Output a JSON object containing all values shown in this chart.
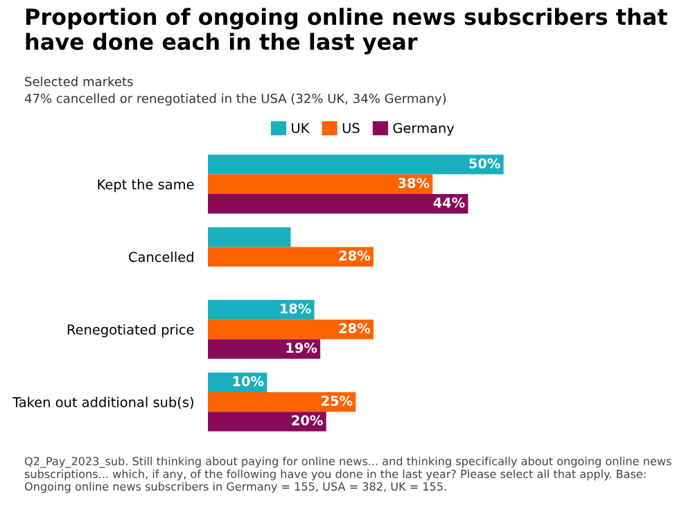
{
  "chart_data": {
    "type": "bar",
    "orientation": "horizontal",
    "title": "Proportion of ongoing online news subscribers that have done each in the last year",
    "subtitle": "Selected markets\n47% cancelled or renegotiated in the USA (32% UK, 34% Germany)",
    "categories": [
      "Kept the same",
      "Cancelled",
      "Renegotiated price",
      "Taken out additional sub(s)"
    ],
    "series": [
      {
        "name": "UK",
        "color": "#1aafbf",
        "values": [
          50,
          14,
          18,
          10
        ],
        "value_labels": [
          "50%",
          null,
          "18%",
          "10%"
        ]
      },
      {
        "name": "US",
        "color": "#ff6200",
        "values": [
          38,
          28,
          28,
          25
        ],
        "value_labels": [
          "38%",
          "28%",
          "28%",
          "25%"
        ]
      },
      {
        "name": "Germany",
        "color": "#8a0a5a",
        "values": [
          44,
          null,
          19,
          20
        ],
        "value_labels": [
          "44%",
          null,
          "19%",
          "20%"
        ]
      }
    ],
    "legend": "top",
    "grid": false,
    "annotations": [
      "Q2_Pay_2023_sub. Still thinking about paying for online news... and thinking specifically about ongoing online news subscriptions... which, if any, of the following have you done in the last year? Please select all that apply. Base: Ongoing online news subscribers in Germany = 155, USA = 382, UK = 155."
    ]
  }
}
